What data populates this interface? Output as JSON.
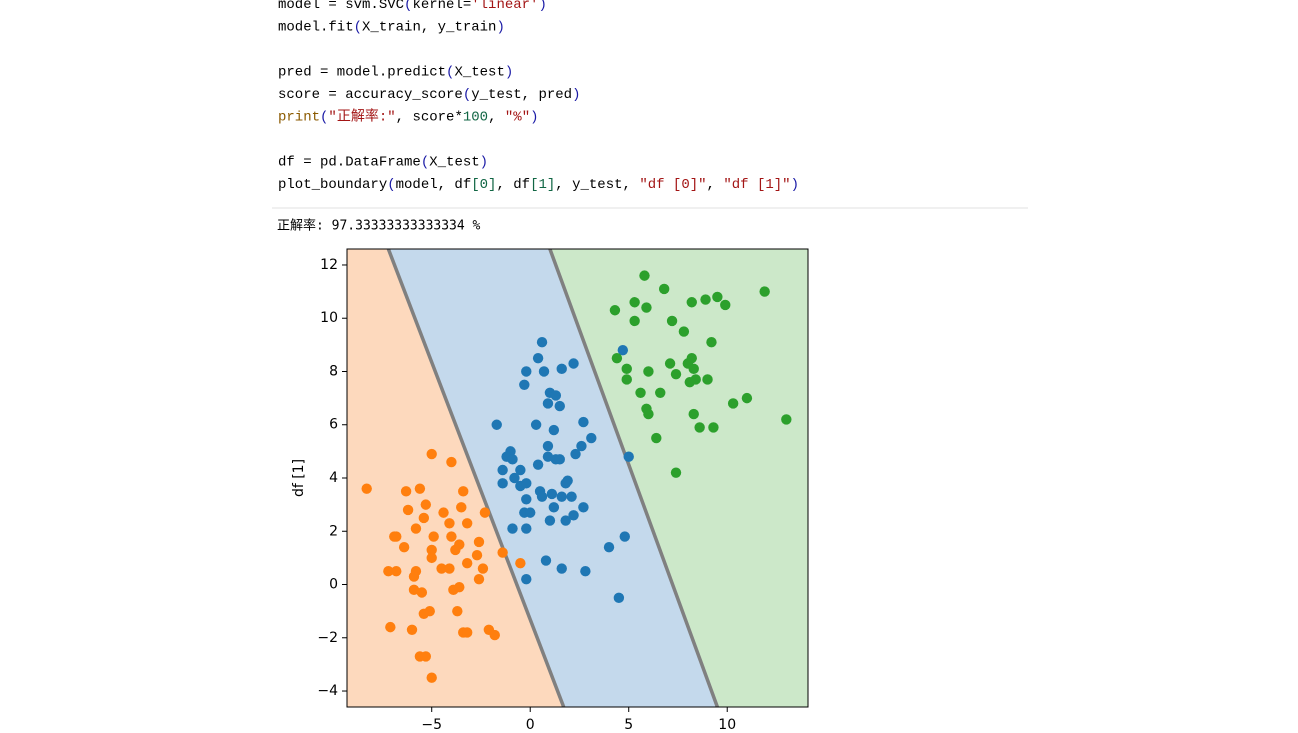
{
  "code_blocks": [
    [
      [
        {
          "text": "model = svm.SVC",
          "color": "#000000"
        },
        {
          "text": "(",
          "color": "#1a1aa6"
        },
        {
          "text": "kernel=",
          "color": "#000000"
        },
        {
          "text": "'linear'",
          "color": "#a31515"
        },
        {
          "text": ")",
          "color": "#1a1aa6"
        }
      ],
      [
        {
          "text": "model.fit",
          "color": "#000000"
        },
        {
          "text": "(",
          "color": "#1a1aa6"
        },
        {
          "text": "X_train, y_train",
          "color": "#000000"
        },
        {
          "text": ")",
          "color": "#1a1aa6"
        }
      ]
    ],
    [
      [
        {
          "text": "pred = model.predict",
          "color": "#000000"
        },
        {
          "text": "(",
          "color": "#1a1aa6"
        },
        {
          "text": "X_test",
          "color": "#000000"
        },
        {
          "text": ")",
          "color": "#1a1aa6"
        }
      ],
      [
        {
          "text": "score = accuracy_score",
          "color": "#000000"
        },
        {
          "text": "(",
          "color": "#1a1aa6"
        },
        {
          "text": "y_test, pred",
          "color": "#000000"
        },
        {
          "text": ")",
          "color": "#1a1aa6"
        }
      ],
      [
        {
          "text": "print",
          "color": "#8b5a00"
        },
        {
          "text": "(",
          "color": "#1a1aa6"
        },
        {
          "text": "\"正解率:\"",
          "color": "#a31515"
        },
        {
          "text": ", score*",
          "color": "#000000"
        },
        {
          "text": "100",
          "color": "#116644"
        },
        {
          "text": ", ",
          "color": "#000000"
        },
        {
          "text": "\"%\"",
          "color": "#a31515"
        },
        {
          "text": ")",
          "color": "#1a1aa6"
        }
      ]
    ],
    [
      [
        {
          "text": "df = pd.DataFrame",
          "color": "#000000"
        },
        {
          "text": "(",
          "color": "#1a1aa6"
        },
        {
          "text": "X_test",
          "color": "#000000"
        },
        {
          "text": ")",
          "color": "#1a1aa6"
        }
      ],
      [
        {
          "text": "plot_boundary",
          "color": "#000000"
        },
        {
          "text": "(",
          "color": "#1a1aa6"
        },
        {
          "text": "model, df",
          "color": "#000000"
        },
        {
          "text": "[0]",
          "color": "#116644"
        },
        {
          "text": ", df",
          "color": "#000000"
        },
        {
          "text": "[1]",
          "color": "#116644"
        },
        {
          "text": ", y_test, ",
          "color": "#000000"
        },
        {
          "text": "\"df [0]\"",
          "color": "#a31515"
        },
        {
          "text": ", ",
          "color": "#000000"
        },
        {
          "text": "\"df [1]\"",
          "color": "#a31515"
        },
        {
          "text": ")",
          "color": "#1a1aa6"
        }
      ]
    ]
  ],
  "output": "正解率: 97.33333333333334 %",
  "chart_data": {
    "type": "scatter",
    "ylabel": "df [1]",
    "xlim": [
      -9.3,
      14.1
    ],
    "ylim": [
      -4.6,
      12.6
    ],
    "xticks": [
      {
        "value": -5,
        "label": "−5"
      },
      0,
      5,
      10
    ],
    "yticks": [
      {
        "value": -4,
        "label": "−4"
      },
      {
        "value": -2,
        "label": "−2"
      },
      0,
      2,
      4,
      6,
      8,
      10,
      12
    ],
    "region_colors": [
      "#fdd9bd",
      "#c4d9ec",
      "#cce8c9"
    ],
    "boundary_color": "#808080",
    "boundary_lines": [
      {
        "x": [
          -7.2,
          1.7
        ],
        "y": [
          12.6,
          -4.6
        ]
      },
      {
        "x": [
          1.0,
          9.5
        ],
        "y": [
          12.6,
          -4.6
        ]
      }
    ],
    "series": [
      {
        "color": "#ff7f0e",
        "x": [
          -8.3,
          -5.0,
          -4.0,
          -6.3,
          -5.6,
          -3.4,
          -6.2,
          -5.3,
          -3.5,
          -2.3,
          -4.4,
          -5.4,
          -4.1,
          -3.2,
          -5.8,
          -6.9,
          -6.8,
          -4.9,
          -4.0,
          -2.6,
          -6.4,
          -5.0,
          -3.8,
          -3.6,
          -1.4,
          -5.0,
          -2.7,
          -7.2,
          -6.8,
          -5.8,
          -4.5,
          -4.1,
          -3.2,
          -2.4,
          -5.9,
          -2.6,
          -5.9,
          -5.5,
          -3.9,
          -3.6,
          -5.1,
          -5.4,
          -3.7,
          -7.1,
          -6.0,
          -3.4,
          -3.2,
          -2.1,
          -1.8,
          -5.6,
          -5.3,
          -5.0,
          -0.5
        ],
        "y": [
          3.6,
          4.9,
          4.6,
          3.5,
          3.6,
          3.5,
          2.8,
          3.0,
          2.9,
          2.7,
          2.7,
          2.5,
          2.3,
          2.3,
          2.1,
          1.8,
          1.8,
          1.8,
          1.8,
          1.6,
          1.4,
          1.3,
          1.3,
          1.5,
          1.2,
          1.0,
          1.1,
          0.5,
          0.5,
          0.5,
          0.6,
          0.6,
          0.8,
          0.6,
          0.3,
          0.2,
          -0.2,
          -0.3,
          -0.2,
          -0.1,
          -1.0,
          -1.1,
          -1.0,
          -1.6,
          -1.7,
          -1.8,
          -1.8,
          -1.7,
          -1.9,
          -2.7,
          -2.7,
          -3.5,
          0.8
        ]
      },
      {
        "color": "#1f77b4",
        "x": [
          0.6,
          0.4,
          -0.2,
          0.7,
          1.6,
          2.2,
          -0.3,
          1.0,
          1.3,
          0.9,
          1.5,
          -1.7,
          0.3,
          1.2,
          2.7,
          3.1,
          0.9,
          2.6,
          -1.0,
          -1.2,
          -0.9,
          0.9,
          1.3,
          2.3,
          0.4,
          1.5,
          -1.4,
          -0.5,
          -0.8,
          -1.4,
          -0.5,
          1.9,
          1.8,
          -0.2,
          0.5,
          0.6,
          1.1,
          1.6,
          2.1,
          -0.2,
          1.2,
          2.7,
          -0.3,
          0.0,
          -0.9,
          -0.2,
          1.0,
          1.8,
          2.2,
          4.8,
          4.0,
          0.8,
          1.6,
          2.8,
          -0.2,
          4.5,
          5.0,
          4.7
        ],
        "y": [
          9.1,
          8.5,
          8.0,
          8.0,
          8.1,
          8.3,
          7.5,
          7.2,
          7.1,
          6.8,
          6.7,
          6.0,
          6.0,
          5.8,
          6.1,
          5.5,
          5.2,
          5.2,
          5.0,
          4.8,
          4.7,
          4.8,
          4.7,
          4.9,
          4.5,
          4.7,
          4.3,
          4.3,
          4.0,
          3.8,
          3.7,
          3.9,
          3.8,
          3.8,
          3.5,
          3.3,
          3.4,
          3.3,
          3.3,
          3.2,
          2.9,
          2.9,
          2.7,
          2.7,
          2.1,
          2.1,
          2.4,
          2.4,
          2.6,
          1.8,
          1.4,
          0.9,
          0.6,
          0.5,
          0.2,
          -0.5,
          4.8,
          8.8
        ]
      },
      {
        "color": "#2ca02c",
        "x": [
          5.8,
          6.8,
          11.9,
          5.3,
          8.2,
          8.9,
          9.5,
          9.9,
          4.3,
          5.9,
          5.3,
          7.2,
          7.8,
          9.2,
          4.4,
          7.1,
          8.2,
          8.0,
          4.9,
          6.0,
          7.4,
          8.3,
          4.9,
          8.1,
          8.4,
          9.0,
          5.6,
          6.6,
          11.0,
          10.3,
          5.9,
          6.0,
          8.3,
          13.0,
          8.6,
          9.3,
          6.4,
          7.4
        ],
        "y": [
          11.6,
          11.1,
          11.0,
          10.6,
          10.6,
          10.7,
          10.8,
          10.5,
          10.3,
          10.4,
          9.9,
          9.9,
          9.5,
          9.1,
          8.5,
          8.3,
          8.5,
          8.3,
          8.1,
          8.0,
          7.9,
          8.1,
          7.7,
          7.6,
          7.7,
          7.7,
          7.2,
          7.2,
          7.0,
          6.8,
          6.6,
          6.4,
          6.4,
          6.2,
          5.9,
          5.9,
          5.5,
          4.2
        ]
      }
    ]
  }
}
